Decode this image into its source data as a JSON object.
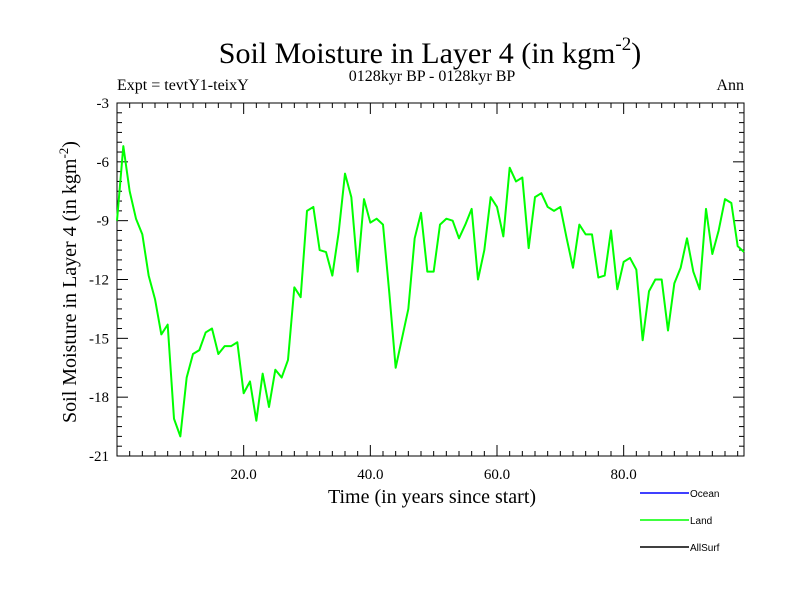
{
  "chart_data": {
    "type": "line",
    "title": "Soil Moisture in Layer 4 (in kgm",
    "title_sup": "-2",
    "title_close": ")",
    "subtitle_left": "Expt = tevtY1-teixY",
    "subtitle_center": "0128kyr BP - 0128kyr BP",
    "subtitle_right": "Ann",
    "xlabel": "Time (in years since start)",
    "ylabel": "Soil Moisture in Layer 4 (in kgm",
    "ylabel_sup": "-2",
    "ylabel_close": ")",
    "xlim": [
      0,
      99
    ],
    "ylim": [
      -21,
      -3
    ],
    "x_ticks": [
      20,
      40,
      60,
      80
    ],
    "x_tick_labels": [
      "20.0",
      "40.0",
      "60.0",
      "80.0"
    ],
    "y_ticks": [
      -3,
      -6,
      -9,
      -12,
      -15,
      -18,
      -21
    ],
    "y_tick_labels": [
      "-3",
      "-6",
      "-9",
      "-12",
      "-15",
      "-18",
      "-21"
    ],
    "series": [
      {
        "name": "Land",
        "color": "#00ff00",
        "x": [
          0,
          1,
          2,
          3,
          4,
          5,
          6,
          7,
          8,
          9,
          10,
          11,
          12,
          13,
          14,
          15,
          16,
          17,
          18,
          19,
          20,
          21,
          22,
          23,
          24,
          25,
          26,
          27,
          28,
          29,
          30,
          31,
          32,
          33,
          34,
          35,
          36,
          37,
          38,
          39,
          40,
          41,
          42,
          43,
          44,
          45,
          46,
          47,
          48,
          49,
          50,
          51,
          52,
          53,
          54,
          55,
          56,
          57,
          58,
          59,
          60,
          61,
          62,
          63,
          64,
          65,
          66,
          67,
          68,
          69,
          70,
          71,
          72,
          73,
          74,
          75,
          76,
          77,
          78,
          79,
          80,
          81,
          82,
          83,
          84,
          85,
          86,
          87,
          88,
          89,
          90,
          91,
          92,
          93,
          94,
          95,
          96,
          97,
          98,
          99
        ],
        "values": [
          -9.0,
          -5.2,
          -7.5,
          -8.9,
          -9.7,
          -11.8,
          -13.0,
          -14.8,
          -14.3,
          -19.1,
          -20.0,
          -17.0,
          -15.8,
          -15.6,
          -14.7,
          -14.5,
          -15.8,
          -15.4,
          -15.4,
          -15.2,
          -17.8,
          -17.2,
          -19.2,
          -16.8,
          -18.5,
          -16.6,
          -17.0,
          -16.1,
          -12.4,
          -12.9,
          -8.5,
          -8.3,
          -10.5,
          -10.6,
          -11.8,
          -9.6,
          -6.6,
          -7.8,
          -11.6,
          -7.9,
          -9.1,
          -8.9,
          -9.2,
          -12.7,
          -16.5,
          -15.0,
          -13.5,
          -9.9,
          -8.6,
          -11.6,
          -11.6,
          -9.2,
          -8.9,
          -9.0,
          -9.9,
          -9.2,
          -8.4,
          -12.0,
          -10.5,
          -7.8,
          -8.3,
          -9.8,
          -6.3,
          -7.0,
          -6.8,
          -10.4,
          -7.8,
          -7.6,
          -8.3,
          -8.5,
          -8.3,
          -9.9,
          -11.4,
          -9.2,
          -9.7,
          -9.7,
          -11.9,
          -11.8,
          -9.5,
          -12.5,
          -11.1,
          -10.9,
          -11.5,
          -15.1,
          -12.6,
          -12.0,
          -12.0,
          -14.6,
          -12.2,
          -11.4,
          -9.9,
          -11.6,
          -12.5,
          -8.4,
          -10.7,
          -9.5,
          -7.9,
          -8.1,
          -10.3,
          -10.6
        ]
      },
      {
        "name": "Ocean",
        "color": "#0000ff",
        "values": []
      },
      {
        "name": "AllSurf",
        "color": "#000000",
        "values": []
      }
    ],
    "legend": {
      "placement": "bottom-right",
      "entries": [
        {
          "label": "Ocean",
          "color": "#0000ff"
        },
        {
          "label": "Land",
          "color": "#00ff00"
        },
        {
          "label": "AllSurf",
          "color": "#000000"
        }
      ]
    }
  }
}
